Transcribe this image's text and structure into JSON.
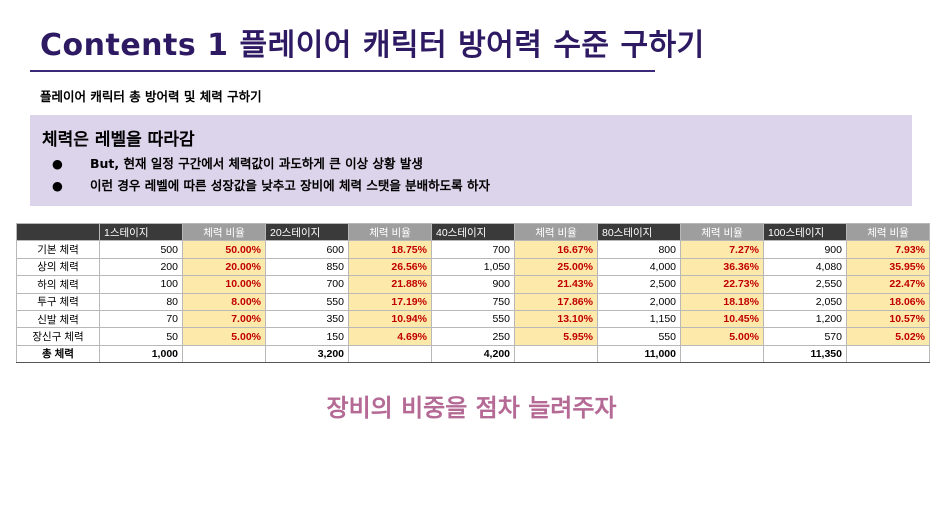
{
  "page": {
    "title": "Contents 1 플레이어 캐릭터 방어력 수준 구하기",
    "subtitle": "플레이어 캐릭터 총 방어력 및 체력 구하기",
    "callout": "장비의 비중을 점차 늘려주자"
  },
  "box": {
    "heading": "체력은 레벨을 따라감",
    "bullets": [
      {
        "marker": "●",
        "text": "But, 현재 일정 구간에서 체력값이 과도하게 큰 이상 상황 발생"
      },
      {
        "marker": "●",
        "text": "이런 경우 레벨에 따른 성장값을 낮추고 장비에 체력 스탯을 분배하도록 하자"
      }
    ]
  },
  "table": {
    "stages": [
      "1스테이지",
      "20스테이지",
      "40스테이지",
      "80스테이지",
      "100스테이지"
    ],
    "ratio_header": "체력 비율",
    "rows": [
      {
        "label": "기본 체력",
        "cells": [
          [
            "500",
            "50.00%"
          ],
          [
            "600",
            "18.75%"
          ],
          [
            "700",
            "16.67%"
          ],
          [
            "800",
            "7.27%"
          ],
          [
            "900",
            "7.93%"
          ]
        ]
      },
      {
        "label": "상의 체력",
        "cells": [
          [
            "200",
            "20.00%"
          ],
          [
            "850",
            "26.56%"
          ],
          [
            "1,050",
            "25.00%"
          ],
          [
            "4,000",
            "36.36%"
          ],
          [
            "4,080",
            "35.95%"
          ]
        ]
      },
      {
        "label": "하의 체력",
        "cells": [
          [
            "100",
            "10.00%"
          ],
          [
            "700",
            "21.88%"
          ],
          [
            "900",
            "21.43%"
          ],
          [
            "2,500",
            "22.73%"
          ],
          [
            "2,550",
            "22.47%"
          ]
        ]
      },
      {
        "label": "투구 체력",
        "cells": [
          [
            "80",
            "8.00%"
          ],
          [
            "550",
            "17.19%"
          ],
          [
            "750",
            "17.86%"
          ],
          [
            "2,000",
            "18.18%"
          ],
          [
            "2,050",
            "18.06%"
          ]
        ]
      },
      {
        "label": "신발 체력",
        "cells": [
          [
            "70",
            "7.00%"
          ],
          [
            "350",
            "10.94%"
          ],
          [
            "550",
            "13.10%"
          ],
          [
            "1,150",
            "10.45%"
          ],
          [
            "1,200",
            "10.57%"
          ]
        ]
      },
      {
        "label": "장신구 체력",
        "cells": [
          [
            "50",
            "5.00%"
          ],
          [
            "150",
            "4.69%"
          ],
          [
            "250",
            "5.95%"
          ],
          [
            "550",
            "5.00%"
          ],
          [
            "570",
            "5.02%"
          ]
        ]
      }
    ],
    "total": {
      "label": "총 체력",
      "values": [
        "1,000",
        "3,200",
        "4,200",
        "11,000",
        "11,350"
      ]
    }
  }
}
